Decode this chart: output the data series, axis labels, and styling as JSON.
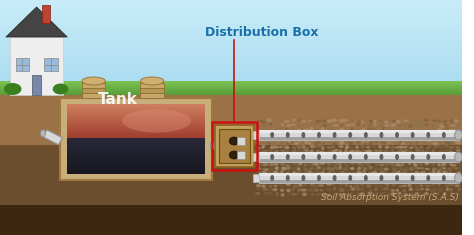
{
  "title": "Distribution Box",
  "subtitle": "Soil Absorption System (S.A.S)",
  "tank_label": "Tank",
  "sky_top": "#a8daf0",
  "sky_bottom": "#c8ecf8",
  "grass_top": "#7dc455",
  "grass_bot": "#5a9e38",
  "ground_mid": "#9b7248",
  "ground_dark": "#6b4e2e",
  "ground_very_dark": "#3d2710",
  "tank_wall": "#c8ae7a",
  "tank_fluid_top": "#c0604a",
  "tank_fluid_bot": "#181820",
  "tank_water_mid": "#282838",
  "dbox_outer": "#c0a060",
  "dbox_inner": "#a88040",
  "pipe_light": "#d8d8d8",
  "pipe_mid": "#b8b8b8",
  "pipe_dark": "#909090",
  "pipe_hole": "#606060",
  "label_color": "#1a6faa",
  "red_color": "#cc1111",
  "house_wall": "#eeeeee",
  "house_roof": "#444444",
  "house_chimney": "#bb4433",
  "window_color": "#99bbdd",
  "door_color": "#7788aa",
  "bush_color": "#3a8020",
  "sub_label_color": "#c8a878",
  "gravel_color": "#8a7050",
  "gravel_light": "#aa9070"
}
